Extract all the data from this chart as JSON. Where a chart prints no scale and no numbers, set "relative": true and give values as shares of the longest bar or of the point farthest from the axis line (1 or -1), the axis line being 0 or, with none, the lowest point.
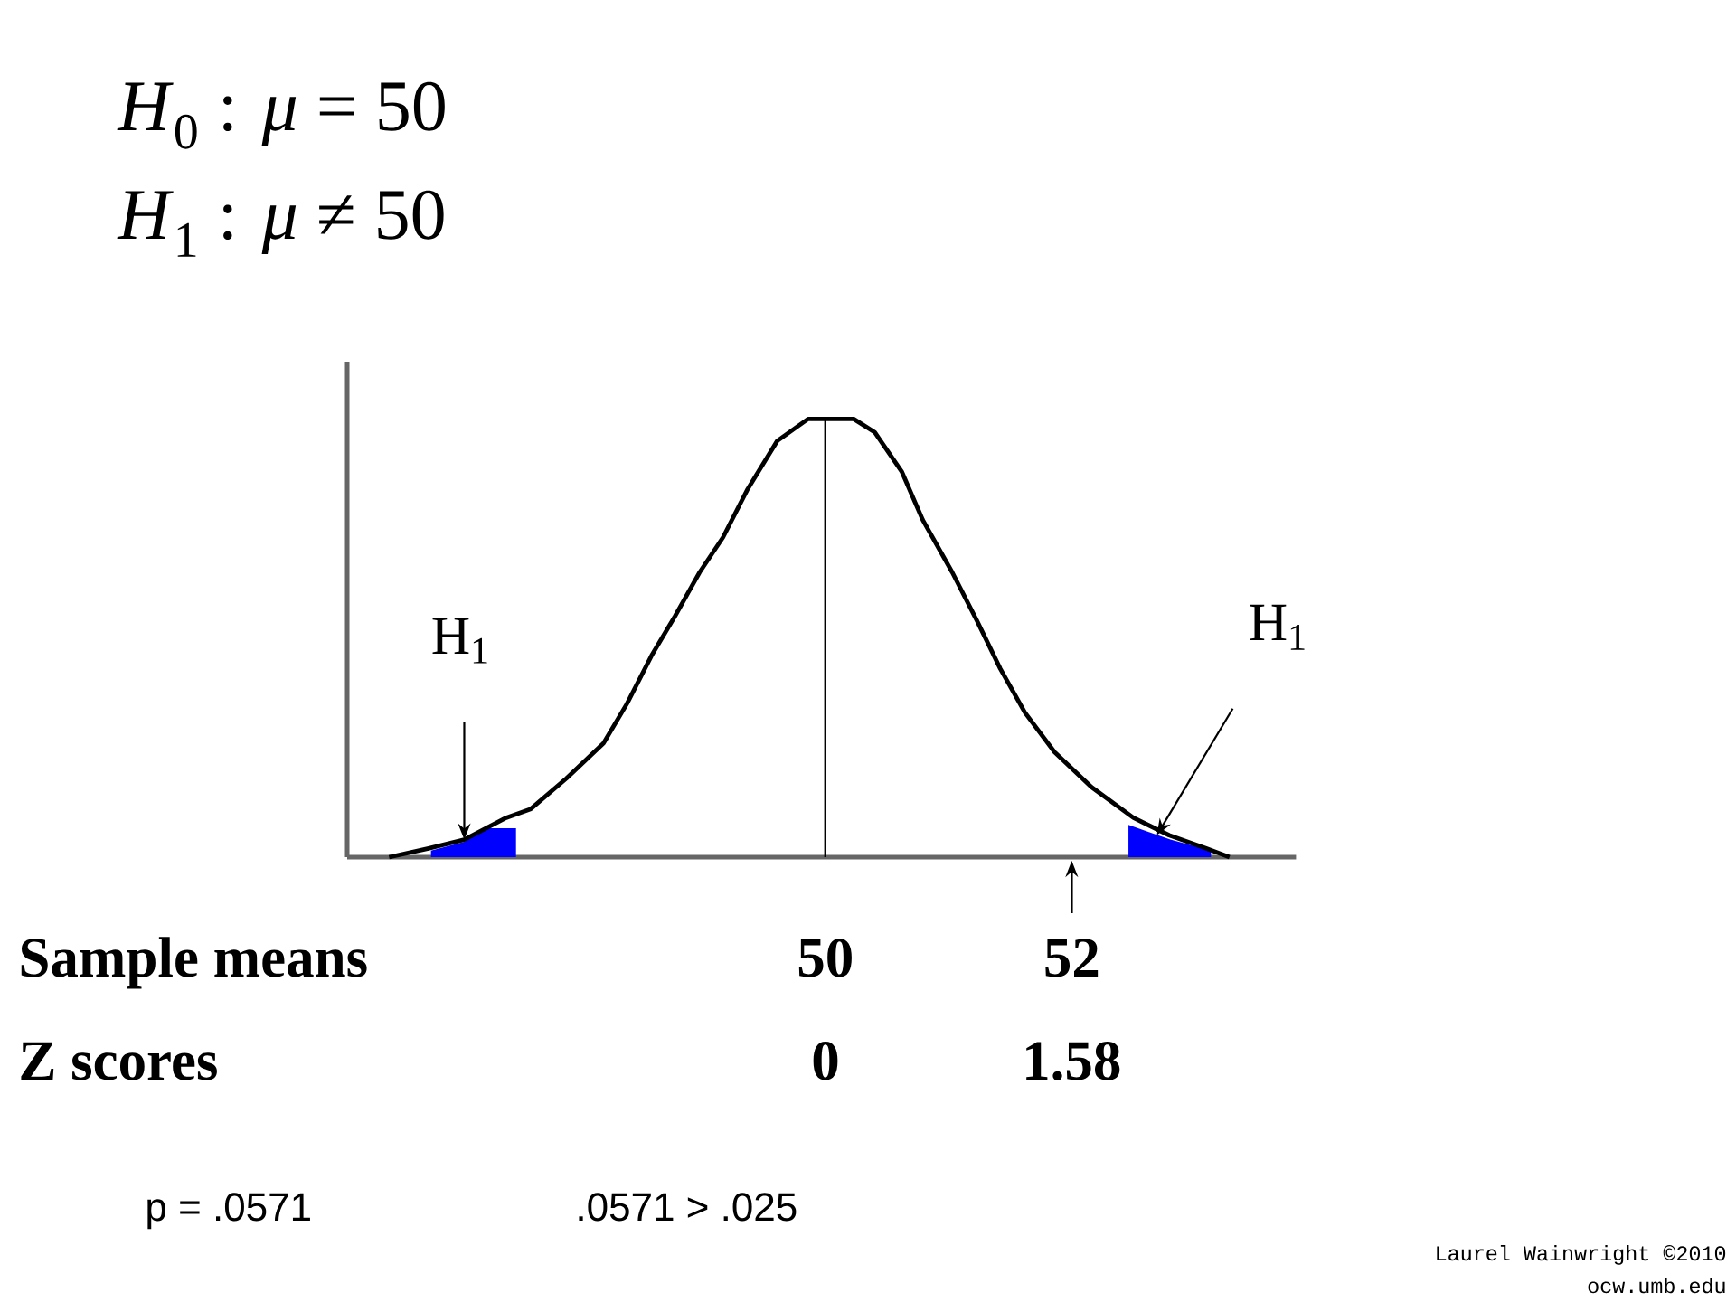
{
  "chart_data": {
    "type": "line",
    "title": "*H*$_{0}$ : *μ* = 50",
    "subtitle": "*H*$_{1}$ : *μ* ≠ 50",
    "xlabel": "Sample means",
    "x2label": "Z scores",
    "relative": true,
    "xlim": [
      46.12,
      53.82
    ],
    "xticks": [
      50,
      52
    ],
    "x2lim": [
      -3.07,
      3.02
    ],
    "x2ticks": [
      0,
      1.58
    ],
    "series": [
      {
        "type": "area",
        "color": "#0000ff",
        "x": [
          46.8,
          47.07,
          47.24,
          47.49
        ],
        "values": [
          0.015,
          0.035,
          0.066,
          0.066
        ]
      },
      {
        "type": "area",
        "color": "#0000ff",
        "x": [
          52.46,
          52.6,
          52.8,
          53.13
        ],
        "values": [
          0.074,
          0.06,
          0.04,
          0.015
        ]
      },
      {
        "color": "#000000",
        "x": [
          46.46,
          46.78,
          47.07,
          47.41,
          47.61,
          47.9,
          48.2,
          48.39,
          48.59,
          48.78,
          48.98,
          49.17,
          49.37,
          49.61,
          49.86,
          50.0,
          50.23,
          50.4,
          50.62,
          50.79,
          51.03,
          51.23,
          51.42,
          51.62,
          51.86,
          52.16,
          52.5,
          52.79,
          53.09,
          53.28
        ],
        "values": [
          0,
          0.02,
          0.04,
          0.09,
          0.11,
          0.18,
          0.26,
          0.35,
          0.46,
          0.55,
          0.65,
          0.73,
          0.84,
          0.95,
          1,
          1,
          1,
          0.97,
          0.88,
          0.77,
          0.65,
          0.54,
          0.43,
          0.33,
          0.24,
          0.16,
          0.09,
          0.05,
          0.02,
          0
        ]
      }
    ],
    "ref_lines": [
      {
        "axis": "x",
        "value": 50,
        "color": "#000000"
      }
    ],
    "annotations": [
      {
        "text": "H$_{1}$",
        "x": 47.07,
        "y": 0.04
      },
      {
        "text": "H$_{1}$",
        "x": 52.69,
        "y": 0.05
      },
      "p = .0571",
      ".0571 > .025",
      "Laurel Wainwright ©2010",
      "ocw.umb.edu"
    ]
  }
}
